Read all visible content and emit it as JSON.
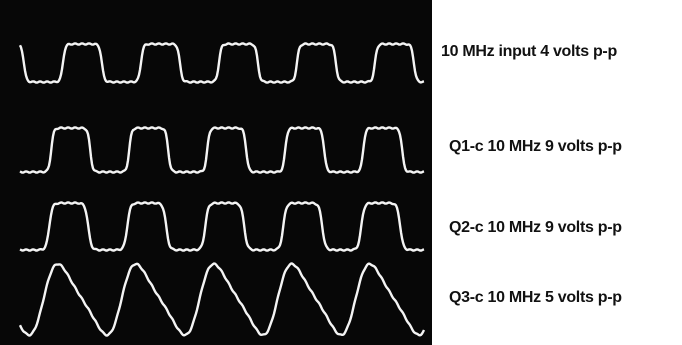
{
  "traces": [
    {
      "label": "10 MHz input 4 volts p-p"
    },
    {
      "label": "Q1-c 10 MHz 9 volts p-p"
    },
    {
      "label": "Q2-c 10 MHz 9 volts p-p"
    },
    {
      "label": "Q3-c 10 MHz 5 volts p-p"
    }
  ]
}
